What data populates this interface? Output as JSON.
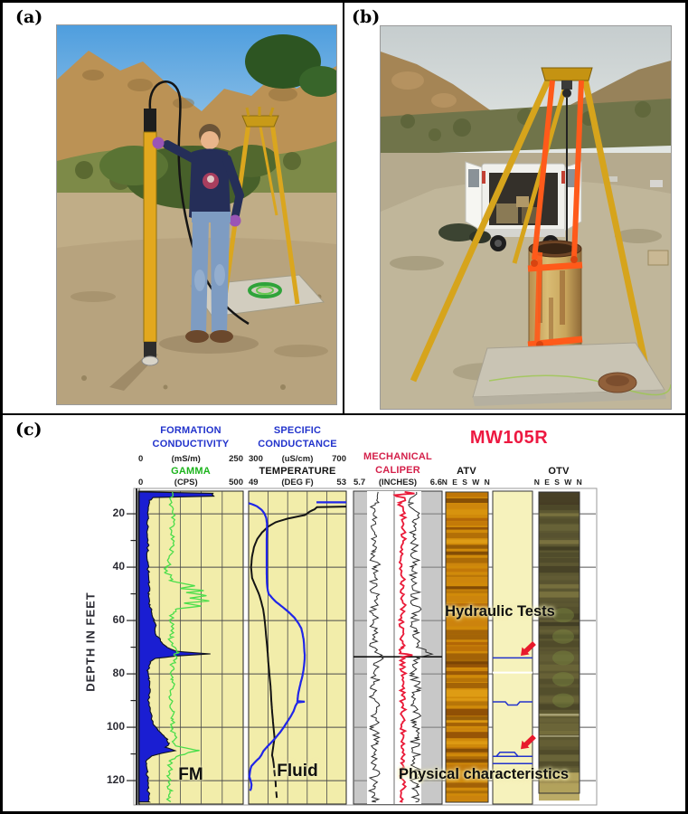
{
  "figure": {
    "panel_a_label": "(a)",
    "panel_b_label": "(b)",
    "panel_c_label": "(c)"
  },
  "photos": {
    "a": {
      "palette": {
        "sky": "#5fa8e0",
        "rock": "#bb9255",
        "scrub": "#7d8a48",
        "bush": "#47602a",
        "dirt": "#b7a37e",
        "tripod": "#daa61e",
        "probe": "#e2a81e",
        "shirt": "#252e58",
        "jeans": "#7e9cc2",
        "glove": "#9a55b5",
        "skin": "#e9b58b",
        "pad": "#d2cdbf",
        "hose": "#2fa33a"
      }
    },
    "b": {
      "palette": {
        "sky": "#c9d0d0",
        "hills": "#a58555",
        "scrub": "#70744a",
        "ground": "#b5aa8e",
        "van": "#f0f0ec",
        "interior": "#34302a",
        "tripod": "#d6a41c",
        "strap": "#ff5a1a",
        "casing": "#c8a55c",
        "rust": "#8a5226",
        "pad": "#c9c4b4",
        "cap": "#91603a"
      }
    }
  },
  "chart_data": {
    "type": "well-log",
    "well_name": "MW105R",
    "depth_axis": {
      "label": "DEPTH IN FEET",
      "tick_labels": [
        20,
        40,
        60,
        80,
        100,
        120
      ],
      "minor_tick_step_ft": 10,
      "top_ft": 11.5,
      "bottom_ft": 129
    },
    "header": {
      "formation_conductivity": {
        "line1": "FORMATION",
        "line2": "CONDUCTIVITY",
        "min": "0",
        "unit": "(mS/m)",
        "max": "250",
        "color": "#2233cc"
      },
      "specific_conductance": {
        "line1": "SPECIFIC",
        "line2": "CONDUCTANCE",
        "min": "300",
        "unit": "(uS/cm)",
        "max": "700",
        "color": "#2233cc"
      },
      "gamma": {
        "line1": "GAMMA",
        "min": "0",
        "unit": "(CPS)",
        "max": "500",
        "color": "#1db41d"
      },
      "temperature": {
        "line1": "TEMPERATURE",
        "min": "49",
        "unit": "(DEG F)",
        "max": "53",
        "color": "#141414"
      },
      "mechanical_caliper": {
        "line1": "MECHANICAL",
        "line2": "CALIPER",
        "min": "5.7",
        "unit": "(INCHES)",
        "max": "6.6",
        "color": "#d4204a"
      },
      "atv": {
        "line1": "ATV",
        "sub": "N E S W N"
      },
      "otv": {
        "line1": "OTV",
        "sub": "N E S W N"
      }
    },
    "track_labels": {
      "fm": "FM",
      "fluid": "Fluid",
      "hydraulic_tests": "Hydraulic Tests",
      "physical_characteristics": "Physical characteristics"
    },
    "annotations": {
      "test_intervals": [
        {
          "depth_ft": 74.0,
          "style": "line"
        },
        {
          "depth_ft": 90.5,
          "style": "line-sag"
        },
        {
          "depth_ft": 110.9,
          "style": "band-top"
        },
        {
          "depth_ft": 113.6,
          "style": "line"
        }
      ],
      "white_line_ft": [
        79.5
      ],
      "arrow_tip_ft": [
        72.5,
        107.5
      ],
      "fracture_line_ft": 73.6
    },
    "colors": {
      "track_bg_yellow": "#f2edaa",
      "annotation_bg": "#f6f2bc",
      "caliper_bg": "#c8c8c8",
      "conductivity_fill": "#1a1ed2",
      "gamma_curve": "#4ade4a",
      "temperature_curve": "#141414",
      "conductance_curve": "#2026e8",
      "caliper_curve": "#ea1a38",
      "black_trace": "#2b2b2b",
      "arrow_red": "#e8192c",
      "test_line_blue": "#2233cc",
      "atv_base": "#d08a0a",
      "otv_base": "#5c5731"
    },
    "series": {
      "formation_conductivity_mS_m": [
        [
          11.8,
          12
        ],
        [
          12.3,
          178
        ],
        [
          13.4,
          180
        ],
        [
          13.9,
          35
        ],
        [
          15,
          26
        ],
        [
          18,
          24
        ],
        [
          22,
          23
        ],
        [
          26,
          22
        ],
        [
          30,
          23
        ],
        [
          34,
          22
        ],
        [
          38,
          23
        ],
        [
          42,
          24
        ],
        [
          46,
          24
        ],
        [
          50,
          26
        ],
        [
          54,
          28
        ],
        [
          57,
          32
        ],
        [
          60,
          36
        ],
        [
          62,
          42
        ],
        [
          64,
          40
        ],
        [
          66,
          46
        ],
        [
          68,
          55
        ],
        [
          70,
          68
        ],
        [
          71.5,
          90
        ],
        [
          72.5,
          172
        ],
        [
          73.3,
          90
        ],
        [
          74.2,
          40
        ],
        [
          75.5,
          28
        ],
        [
          77,
          25
        ],
        [
          79,
          23
        ],
        [
          82,
          24
        ],
        [
          85,
          26
        ],
        [
          88,
          25
        ],
        [
          91,
          26
        ],
        [
          94,
          28
        ],
        [
          97,
          31
        ],
        [
          99,
          36
        ],
        [
          101,
          46
        ],
        [
          103,
          60
        ],
        [
          104.5,
          70
        ],
        [
          106,
          74
        ],
        [
          107.5,
          64
        ],
        [
          108.8,
          88
        ],
        [
          109.8,
          55
        ],
        [
          110.8,
          32
        ],
        [
          112,
          22
        ],
        [
          114,
          19
        ],
        [
          117,
          20
        ],
        [
          120,
          22
        ],
        [
          123,
          23
        ],
        [
          126,
          25
        ],
        [
          128,
          26
        ]
      ],
      "gamma_cps": [
        [
          11.8,
          162
        ],
        [
          15,
          155
        ],
        [
          19,
          163
        ],
        [
          23,
          168
        ],
        [
          27,
          158
        ],
        [
          31,
          166
        ],
        [
          35,
          158
        ],
        [
          40,
          138
        ],
        [
          42,
          126
        ],
        [
          43,
          158
        ],
        [
          45,
          150
        ],
        [
          47,
          270
        ],
        [
          48,
          200
        ],
        [
          48.8,
          312
        ],
        [
          49.5,
          228
        ],
        [
          50.7,
          325
        ],
        [
          51.6,
          245
        ],
        [
          52.7,
          338
        ],
        [
          53.5,
          218
        ],
        [
          54.6,
          300
        ],
        [
          55.6,
          185
        ],
        [
          57,
          168
        ],
        [
          60,
          152
        ],
        [
          63,
          168
        ],
        [
          66,
          153
        ],
        [
          69,
          160
        ],
        [
          71,
          182
        ],
        [
          72,
          196
        ],
        [
          73,
          170
        ],
        [
          74,
          184
        ],
        [
          76,
          165
        ],
        [
          79,
          158
        ],
        [
          82,
          156
        ],
        [
          85,
          166
        ],
        [
          88,
          154
        ],
        [
          91,
          158
        ],
        [
          94,
          164
        ],
        [
          97,
          166
        ],
        [
          100,
          155
        ],
        [
          103,
          174
        ],
        [
          105,
          170
        ],
        [
          107,
          178
        ],
        [
          108.7,
          292
        ],
        [
          109.5,
          238
        ],
        [
          110.5,
          198
        ],
        [
          112,
          162
        ],
        [
          114,
          150
        ],
        [
          116,
          154
        ],
        [
          118,
          146
        ],
        [
          120,
          152
        ],
        [
          122,
          144
        ],
        [
          124,
          150
        ],
        [
          126,
          145
        ],
        [
          128,
          150
        ]
      ],
      "temperature_degF": [
        [
          17.3,
          53.2
        ],
        [
          17.5,
          51.8
        ],
        [
          18.3,
          51.7
        ],
        [
          19.2,
          51.5
        ],
        [
          20.5,
          51.3
        ],
        [
          21.8,
          50.6
        ],
        [
          23.2,
          50.1
        ],
        [
          24.8,
          49.8
        ],
        [
          27,
          49.55
        ],
        [
          29.5,
          49.35
        ],
        [
          32.5,
          49.22
        ],
        [
          36,
          49.14
        ],
        [
          40,
          49.1
        ],
        [
          44,
          49.14
        ],
        [
          47.5,
          49.3
        ],
        [
          50,
          49.42
        ],
        [
          53,
          49.52
        ],
        [
          56,
          49.6
        ],
        [
          60,
          49.66
        ],
        [
          64,
          49.7
        ],
        [
          68,
          49.74
        ],
        [
          72,
          49.78
        ],
        [
          76,
          49.81
        ],
        [
          80,
          49.85
        ],
        [
          85,
          49.9
        ],
        [
          90,
          49.93
        ],
        [
          95,
          49.97
        ],
        [
          100,
          50.02
        ],
        [
          104,
          50.06
        ],
        [
          106.5,
          50.02
        ],
        [
          109,
          49.98
        ],
        [
          110.5,
          49.96
        ],
        [
          112,
          50.0
        ],
        [
          114,
          50.03
        ],
        [
          117,
          50.06
        ],
        [
          120,
          50.1
        ],
        [
          123,
          50.12
        ],
        [
          126,
          50.15
        ],
        [
          128,
          50.17
        ]
      ],
      "temperature_dashed_below_ft": 116,
      "specific_conductance_entry": {
        "depth_ft": 15.7,
        "from_uS": 700,
        "to_uS": 578
      },
      "specific_conductance_uS_cm": [
        [
          16.0,
          300
        ],
        [
          16.4,
          314
        ],
        [
          17.2,
          334
        ],
        [
          18.4,
          352
        ],
        [
          19.8,
          364
        ],
        [
          21.5,
          372
        ],
        [
          23.5,
          375
        ],
        [
          26,
          375
        ],
        [
          30,
          374
        ],
        [
          34,
          374
        ],
        [
          38,
          374
        ],
        [
          42,
          374
        ],
        [
          46,
          375
        ],
        [
          48.5,
          378
        ],
        [
          50,
          382
        ],
        [
          51.5,
          396
        ],
        [
          53,
          412
        ],
        [
          55,
          440
        ],
        [
          57,
          466
        ],
        [
          59,
          488
        ],
        [
          61,
          504
        ],
        [
          63,
          516
        ],
        [
          65,
          521
        ],
        [
          67,
          525
        ],
        [
          69,
          527
        ],
        [
          71,
          528
        ],
        [
          73,
          530
        ],
        [
          75,
          529
        ],
        [
          77,
          527
        ],
        [
          79,
          524
        ],
        [
          81,
          520
        ],
        [
          83,
          514
        ],
        [
          85,
          509
        ],
        [
          87,
          504
        ],
        [
          89,
          501
        ],
        [
          90.2,
          500
        ],
        [
          90.4,
          530
        ],
        [
          90.7,
          500
        ],
        [
          92,
          492
        ],
        [
          94,
          484
        ],
        [
          96,
          472
        ],
        [
          98,
          458
        ],
        [
          100,
          444
        ],
        [
          102,
          428
        ],
        [
          104,
          410
        ],
        [
          106,
          390
        ],
        [
          107.5,
          374
        ],
        [
          109,
          360
        ],
        [
          110.5,
          352
        ],
        [
          111.5,
          344
        ],
        [
          112.5,
          332
        ],
        [
          113.5,
          322
        ],
        [
          114.5,
          312
        ],
        [
          115.5,
          308
        ],
        [
          117,
          305
        ],
        [
          118.5,
          303
        ],
        [
          120,
          308
        ],
        [
          121.5,
          312
        ],
        [
          123,
          310
        ],
        [
          123.8,
          306
        ]
      ],
      "mechanical_caliper_inches": [
        [
          11.8,
          6.22
        ],
        [
          12.4,
          6.32
        ],
        [
          13,
          6.12
        ],
        [
          14,
          6.22
        ],
        [
          16,
          6.18
        ],
        [
          20,
          6.21
        ],
        [
          25,
          6.19
        ],
        [
          30,
          6.21
        ],
        [
          35,
          6.2
        ],
        [
          40,
          6.18
        ],
        [
          45,
          6.21
        ],
        [
          50,
          6.2
        ],
        [
          55,
          6.21
        ],
        [
          60,
          6.19
        ],
        [
          65,
          6.21
        ],
        [
          70,
          6.19
        ],
        [
          72.3,
          6.17
        ],
        [
          73,
          6.3
        ],
        [
          73.8,
          6.19
        ],
        [
          78,
          6.2
        ],
        [
          83,
          6.21
        ],
        [
          88,
          6.19
        ],
        [
          93,
          6.21
        ],
        [
          98,
          6.2
        ],
        [
          103,
          6.21
        ],
        [
          108,
          6.2
        ],
        [
          113,
          6.21
        ],
        [
          118,
          6.19
        ],
        [
          123,
          6.21
        ],
        [
          128,
          6.2
        ]
      ],
      "black_trace_left_inches": [
        [
          11.8,
          5.95
        ],
        [
          16,
          5.92
        ],
        [
          22,
          5.9
        ],
        [
          28,
          5.93
        ],
        [
          34,
          5.89
        ],
        [
          40,
          5.93
        ],
        [
          46,
          5.9
        ],
        [
          52,
          5.94
        ],
        [
          58,
          5.9
        ],
        [
          64,
          5.92
        ],
        [
          70,
          5.9
        ],
        [
          73,
          5.99
        ],
        [
          76,
          5.91
        ],
        [
          82,
          5.93
        ],
        [
          88,
          5.9
        ],
        [
          94,
          5.93
        ],
        [
          100,
          5.9
        ],
        [
          106,
          5.93
        ],
        [
          110,
          5.91
        ],
        [
          116,
          5.93
        ],
        [
          122,
          5.9
        ],
        [
          128,
          5.93
        ]
      ],
      "black_trace_right_inches": [
        [
          11.8,
          6.34
        ],
        [
          16,
          6.31
        ],
        [
          22,
          6.34
        ],
        [
          28,
          6.31
        ],
        [
          34,
          6.34
        ],
        [
          40,
          6.31
        ],
        [
          46,
          6.34
        ],
        [
          52,
          6.32
        ],
        [
          58,
          6.34
        ],
        [
          64,
          6.31
        ],
        [
          70,
          6.34
        ],
        [
          72.8,
          6.48
        ],
        [
          74,
          6.34
        ],
        [
          80,
          6.32
        ],
        [
          86,
          6.34
        ],
        [
          92,
          6.32
        ],
        [
          98,
          6.34
        ],
        [
          104,
          6.32
        ],
        [
          110,
          6.35
        ],
        [
          116,
          6.32
        ],
        [
          122,
          6.34
        ],
        [
          128,
          6.33
        ]
      ]
    }
  }
}
